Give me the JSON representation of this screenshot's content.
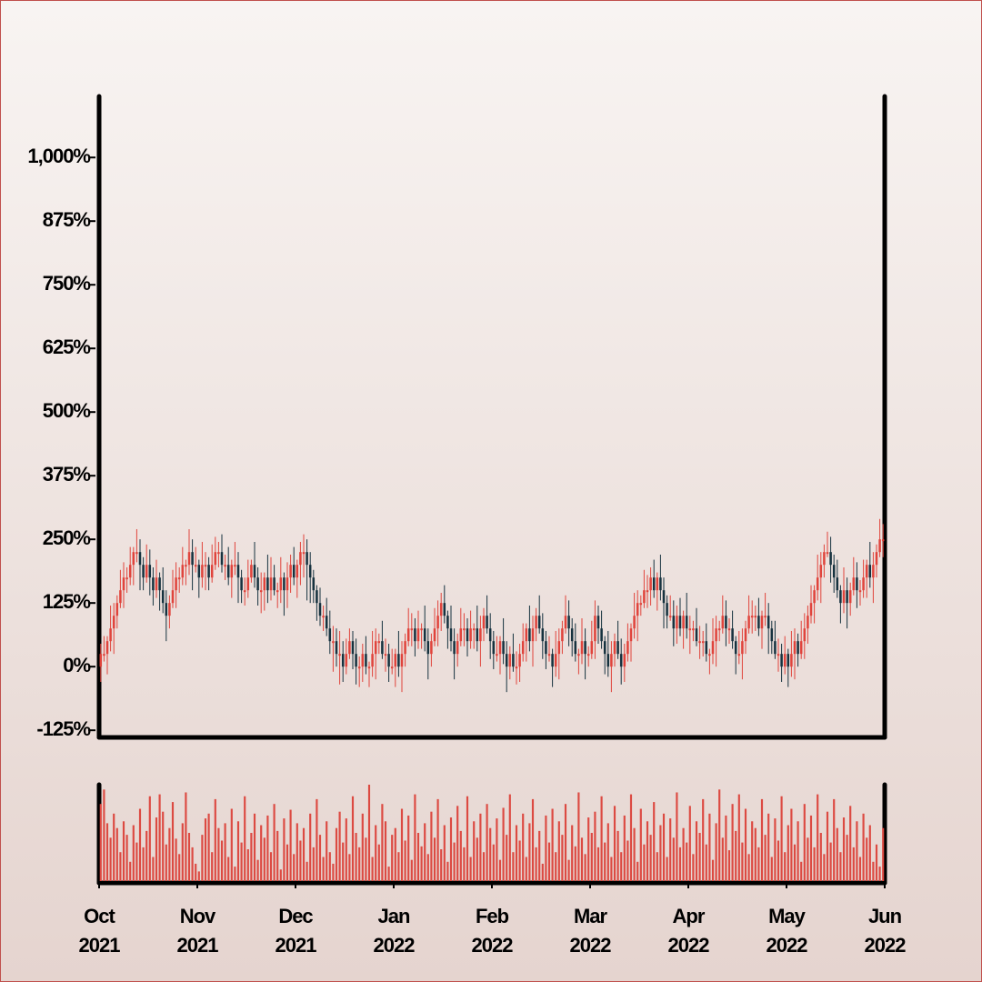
{
  "chart_data": {
    "type": "candlestick",
    "ylim": [
      -139,
      1120
    ],
    "yticks": [
      {
        "value": -125,
        "label": "-125%"
      },
      {
        "value": 0,
        "label": "0%"
      },
      {
        "value": 125,
        "label": "125%"
      },
      {
        "value": 250,
        "label": "250%"
      },
      {
        "value": 375,
        "label": "375%"
      },
      {
        "value": 500,
        "label": "500%"
      },
      {
        "value": 625,
        "label": "625%"
      },
      {
        "value": 750,
        "label": "750%"
      },
      {
        "value": 875,
        "label": "875%"
      },
      {
        "value": 1000,
        "label": "1,000%"
      }
    ],
    "xlim": [
      0,
      240
    ],
    "xticks": [
      {
        "value": 0,
        "label": [
          "Oct",
          "2021"
        ]
      },
      {
        "value": 30,
        "label": [
          "Nov",
          "2021"
        ]
      },
      {
        "value": 60,
        "label": [
          "Dec",
          "2021"
        ]
      },
      {
        "value": 90,
        "label": [
          "Jan",
          "2022"
        ]
      },
      {
        "value": 120,
        "label": [
          "Feb",
          "2022"
        ]
      },
      {
        "value": 150,
        "label": [
          "Mar",
          "2022"
        ]
      },
      {
        "value": 180,
        "label": [
          "Apr",
          "2022"
        ]
      },
      {
        "value": 210,
        "label": [
          "May",
          "2022"
        ]
      },
      {
        "value": 240,
        "label": [
          "Jun",
          "2022"
        ]
      }
    ],
    "up_color": "#e0443c",
    "down_color": "#16323f",
    "open": [
      0,
      25,
      25,
      50,
      75,
      100,
      125,
      150,
      175,
      175,
      200,
      225,
      225,
      200,
      175,
      200,
      175,
      150,
      175,
      150,
      125,
      100,
      125,
      150,
      175,
      175,
      200,
      200,
      225,
      200,
      200,
      175,
      200,
      200,
      175,
      200,
      225,
      225,
      200,
      200,
      175,
      200,
      200,
      175,
      150,
      150,
      175,
      200,
      175,
      150,
      150,
      175,
      150,
      175,
      150,
      150,
      175,
      150,
      175,
      200,
      175,
      200,
      225,
      225,
      200,
      175,
      150,
      125,
      100,
      100,
      75,
      50,
      50,
      25,
      25,
      0,
      25,
      50,
      25,
      0,
      0,
      25,
      0,
      0,
      25,
      50,
      50,
      25,
      25,
      0,
      0,
      25,
      0,
      25,
      50,
      75,
      75,
      50,
      75,
      75,
      50,
      25,
      50,
      75,
      100,
      125,
      100,
      75,
      50,
      25,
      50,
      75,
      75,
      50,
      75,
      75,
      50,
      75,
      100,
      75,
      50,
      25,
      25,
      50,
      25,
      0,
      25,
      0,
      0,
      25,
      50,
      75,
      50,
      75,
      100,
      75,
      50,
      25,
      25,
      0,
      25,
      50,
      75,
      100,
      75,
      50,
      25,
      25,
      50,
      25,
      25,
      50,
      100,
      75,
      50,
      25,
      0,
      25,
      50,
      25,
      0,
      25,
      50,
      75,
      100,
      125,
      125,
      150,
      150,
      175,
      150,
      175,
      150,
      125,
      100,
      100,
      75,
      100,
      75,
      100,
      75,
      75,
      75,
      50,
      50,
      50,
      25,
      25,
      50,
      75,
      75,
      100,
      75,
      75,
      50,
      25,
      25,
      50,
      75,
      100,
      100,
      100,
      75,
      100,
      100,
      75,
      50,
      25,
      25,
      0,
      25,
      0,
      25,
      50,
      25,
      50,
      75,
      100,
      125,
      150,
      175,
      200,
      225,
      225,
      200,
      175,
      150,
      125,
      150,
      125,
      150,
      175,
      150,
      150,
      175,
      200,
      175,
      200,
      225,
      250
    ],
    "high": [
      45,
      60,
      60,
      120,
      125,
      140,
      190,
      205,
      195,
      235,
      235,
      270,
      250,
      215,
      240,
      230,
      195,
      210,
      185,
      195,
      150,
      140,
      190,
      205,
      195,
      235,
      210,
      270,
      250,
      235,
      210,
      245,
      225,
      215,
      240,
      255,
      245,
      260,
      220,
      235,
      210,
      245,
      225,
      190,
      175,
      210,
      210,
      245,
      195,
      185,
      185,
      220,
      215,
      200,
      165,
      215,
      185,
      205,
      220,
      235,
      210,
      245,
      260,
      250,
      225,
      190,
      160,
      155,
      120,
      135,
      110,
      80,
      75,
      70,
      50,
      55,
      75,
      70,
      55,
      20,
      45,
      60,
      10,
      70,
      75,
      65,
      90,
      55,
      45,
      35,
      35,
      70,
      50,
      65,
      115,
      105,
      95,
      110,
      85,
      120,
      75,
      65,
      115,
      130,
      145,
      160,
      110,
      120,
      75,
      65,
      115,
      105,
      95,
      110,
      85,
      120,
      100,
      115,
      140,
      105,
      70,
      60,
      60,
      95,
      50,
      40,
      65,
      30,
      45,
      85,
      85,
      120,
      100,
      115,
      140,
      105,
      70,
      60,
      35,
      70,
      75,
      90,
      140,
      130,
      95,
      85,
      35,
      95,
      75,
      40,
      90,
      130,
      120,
      110,
      60,
      70,
      50,
      65,
      90,
      55,
      45,
      85,
      85,
      145,
      150,
      140,
      190,
      180,
      195,
      210,
      185,
      220,
      175,
      140,
      140,
      130,
      120,
      135,
      110,
      145,
      100,
      90,
      115,
      80,
      70,
      85,
      35,
      95,
      100,
      90,
      140,
      130,
      95,
      110,
      60,
      70,
      75,
      90,
      140,
      130,
      120,
      135,
      110,
      145,
      125,
      90,
      90,
      55,
      45,
      60,
      35,
      70,
      75,
      65,
      90,
      105,
      120,
      160,
      160,
      220,
      225,
      240,
      265,
      255,
      220,
      210,
      160,
      195,
      175,
      165,
      215,
      205,
      170,
      210,
      210,
      245,
      225,
      240,
      290,
      280
    ],
    "low": [
      -30,
      10,
      -15,
      30,
      25,
      75,
      115,
      115,
      145,
      160,
      160,
      205,
      150,
      150,
      165,
      140,
      120,
      135,
      110,
      105,
      50,
      75,
      115,
      115,
      145,
      160,
      160,
      180,
      150,
      185,
      135,
      155,
      150,
      150,
      165,
      190,
      195,
      185,
      170,
      160,
      135,
      180,
      125,
      125,
      120,
      135,
      165,
      155,
      120,
      105,
      110,
      125,
      130,
      140,
      115,
      125,
      100,
      115,
      145,
      160,
      135,
      160,
      175,
      130,
      125,
      125,
      90,
      80,
      70,
      60,
      25,
      -10,
      0,
      -35,
      -30,
      -15,
      15,
      -5,
      -35,
      -40,
      -30,
      -15,
      -40,
      -20,
      -25,
      25,
      15,
      -10,
      -30,
      -15,
      -40,
      -20,
      -50,
      0,
      40,
      40,
      20,
      35,
      35,
      30,
      -25,
      0,
      40,
      40,
      70,
      85,
      35,
      30,
      -25,
      0,
      40,
      40,
      20,
      35,
      35,
      30,
      0,
      50,
      65,
      15,
      -5,
      10,
      -15,
      5,
      -50,
      -25,
      -10,
      -35,
      -30,
      10,
      10,
      30,
      0,
      50,
      65,
      15,
      -5,
      10,
      -40,
      -20,
      -25,
      25,
      65,
      40,
      20,
      10,
      -15,
      5,
      -25,
      0,
      15,
      15,
      45,
      35,
      -15,
      -20,
      -50,
      0,
      15,
      -35,
      -30,
      10,
      10,
      55,
      50,
      100,
      115,
      115,
      120,
      135,
      110,
      130,
      75,
      75,
      90,
      40,
      45,
      60,
      35,
      55,
      25,
      50,
      40,
      15,
      20,
      10,
      -15,
      5,
      0,
      50,
      65,
      40,
      45,
      35,
      -15,
      5,
      -25,
      25,
      65,
      65,
      70,
      60,
      35,
      80,
      25,
      25,
      15,
      -10,
      -30,
      -15,
      -40,
      -20,
      -25,
      0,
      15,
      15,
      45,
      85,
      85,
      130,
      125,
      175,
      215,
      165,
      145,
      135,
      85,
      105,
      75,
      100,
      140,
      115,
      120,
      135,
      135,
      155,
      125,
      175,
      215,
      215
    ],
    "close": [
      25,
      25,
      50,
      75,
      100,
      125,
      150,
      175,
      175,
      200,
      225,
      225,
      200,
      175,
      200,
      175,
      150,
      175,
      150,
      125,
      100,
      125,
      150,
      175,
      175,
      200,
      200,
      225,
      200,
      200,
      175,
      200,
      200,
      175,
      200,
      225,
      225,
      200,
      200,
      175,
      200,
      200,
      175,
      150,
      150,
      175,
      200,
      175,
      150,
      150,
      175,
      150,
      175,
      150,
      150,
      175,
      150,
      175,
      200,
      175,
      200,
      225,
      225,
      200,
      175,
      150,
      125,
      100,
      100,
      75,
      50,
      50,
      25,
      25,
      0,
      25,
      50,
      25,
      0,
      0,
      25,
      0,
      0,
      25,
      50,
      50,
      25,
      25,
      0,
      0,
      25,
      0,
      25,
      50,
      75,
      75,
      50,
      75,
      75,
      50,
      25,
      50,
      75,
      100,
      125,
      100,
      75,
      50,
      25,
      50,
      75,
      75,
      50,
      75,
      75,
      50,
      75,
      100,
      75,
      50,
      25,
      25,
      50,
      25,
      0,
      25,
      0,
      0,
      25,
      50,
      75,
      50,
      75,
      100,
      75,
      50,
      25,
      25,
      0,
      25,
      50,
      75,
      100,
      75,
      50,
      25,
      25,
      50,
      25,
      25,
      50,
      100,
      75,
      50,
      25,
      0,
      25,
      50,
      25,
      0,
      25,
      50,
      75,
      100,
      125,
      125,
      150,
      150,
      175,
      150,
      175,
      150,
      125,
      100,
      100,
      75,
      100,
      75,
      100,
      75,
      75,
      75,
      50,
      50,
      50,
      25,
      25,
      50,
      75,
      75,
      100,
      75,
      75,
      50,
      25,
      25,
      50,
      75,
      100,
      100,
      100,
      75,
      100,
      100,
      75,
      50,
      25,
      25,
      0,
      25,
      0,
      25,
      50,
      25,
      50,
      75,
      100,
      125,
      150,
      175,
      200,
      225,
      225,
      200,
      175,
      150,
      125,
      150,
      125,
      150,
      175,
      150,
      150,
      175,
      200,
      175,
      200,
      225,
      250,
      250
    ],
    "volume": {
      "color": "#dc4a42",
      "ylim": [
        0,
        100
      ],
      "values": [
        80,
        95,
        60,
        45,
        70,
        55,
        30,
        62,
        48,
        20,
        58,
        40,
        75,
        35,
        52,
        88,
        25,
        66,
        90,
        72,
        38,
        55,
        82,
        44,
        28,
        60,
        92,
        50,
        35,
        18,
        10,
        48,
        65,
        70,
        30,
        85,
        55,
        42,
        60,
        25,
        75,
        15,
        62,
        40,
        88,
        33,
        50,
        70,
        22,
        58,
        45,
        68,
        30,
        80,
        52,
        12,
        65,
        38,
        74,
        28,
        60,
        42,
        55,
        20,
        70,
        35,
        85,
        48,
        25,
        62,
        30,
        18,
        55,
        72,
        40,
        65,
        28,
        88,
        50,
        35,
        70,
        45,
        100,
        25,
        58,
        38,
        80,
        62,
        15,
        48,
        55,
        30,
        75,
        42,
        68,
        22,
        90,
        50,
        36,
        60,
        28,
        72,
        45,
        85,
        33,
        58,
        20,
        66,
        40,
        78,
        52,
        35,
        88,
        25,
        62,
        45,
        70,
        30,
        80,
        55,
        38,
        65,
        22,
        76,
        48,
        90,
        30,
        58,
        42,
        70,
        25,
        60,
        85,
        35,
        52,
        18,
        68,
        40,
        75,
        30,
        62,
        48,
        80,
        22,
        58,
        36,
        92,
        45,
        28,
        66,
        50,
        72,
        35,
        88,
        40,
        60,
        25,
        78,
        52,
        30,
        68,
        42,
        90,
        55,
        20,
        75,
        38,
        62,
        48,
        82,
        30,
        58,
        70,
        25,
        65,
        45,
        92,
        35,
        55,
        40,
        78,
        28,
        62,
        50,
        85,
        38,
        70,
        22,
        60,
        95,
        45,
        68,
        32,
        80,
        52,
        90,
        40,
        75,
        28,
        62,
        55,
        35,
        85,
        48,
        70,
        25,
        65,
        42,
        88,
        30,
        58,
        75,
        38,
        62,
        20,
        80,
        45,
        68,
        35,
        90,
        50,
        28,
        72,
        40,
        85,
        55,
        30,
        66,
        48,
        78,
        35,
        62,
        25,
        70,
        45,
        58,
        20,
        38,
        15,
        55
      ]
    }
  }
}
